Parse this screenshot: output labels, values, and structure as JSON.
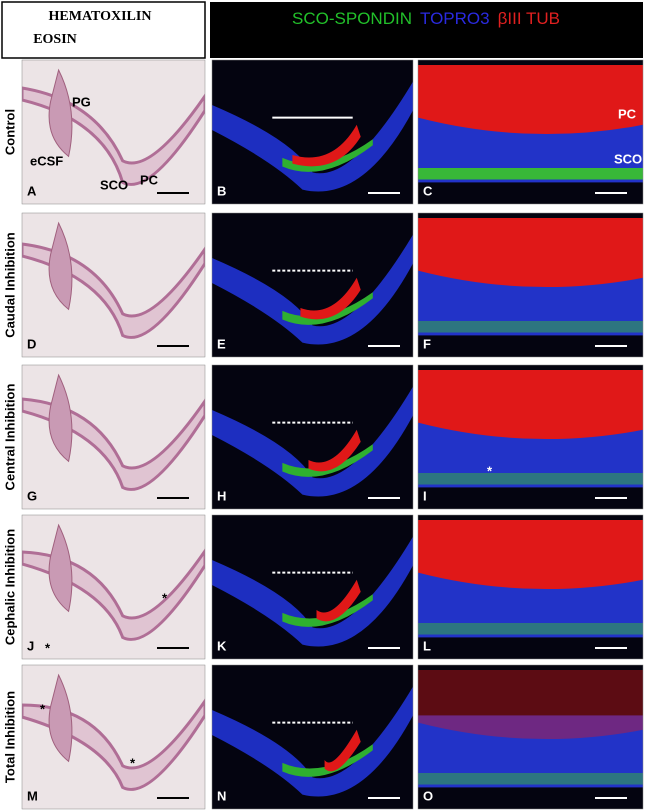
{
  "header": {
    "left_title": [
      "HEMATOXILIN",
      "EOSIN"
    ],
    "stains": [
      {
        "text": "SCO-SPONDIN",
        "color": "#22c02a"
      },
      {
        "text": "TOPRO3",
        "color": "#2a2ae0"
      },
      {
        "text": "βIII TUB",
        "color": "#e02020"
      }
    ]
  },
  "rows": [
    {
      "label": "Control",
      "panels": [
        {
          "letter": "A",
          "annotations": [
            "PG",
            "eCSF",
            "SCO",
            "PC"
          ]
        },
        {
          "letter": "B",
          "annotations": []
        },
        {
          "letter": "C",
          "annotations": [
            "PC",
            "SCO"
          ]
        }
      ]
    },
    {
      "label": "Caudal Inhibition",
      "panels": [
        {
          "letter": "D",
          "annotations": []
        },
        {
          "letter": "E",
          "annotations": []
        },
        {
          "letter": "F",
          "annotations": []
        }
      ]
    },
    {
      "label": "Central Inhibition",
      "panels": [
        {
          "letter": "G",
          "annotations": []
        },
        {
          "letter": "H",
          "annotations": []
        },
        {
          "letter": "I",
          "annotations": [
            "*"
          ]
        }
      ]
    },
    {
      "label": "Cephalic Inhibition",
      "panels": [
        {
          "letter": "J",
          "annotations": [
            "*",
            "*"
          ]
        },
        {
          "letter": "K",
          "annotations": []
        },
        {
          "letter": "L",
          "annotations": []
        }
      ]
    },
    {
      "label": "Total  Inhibition",
      "panels": [
        {
          "letter": "M",
          "annotations": [
            "*",
            "*"
          ]
        },
        {
          "letter": "N",
          "annotations": []
        },
        {
          "letter": "O",
          "annotations": []
        }
      ]
    }
  ]
}
